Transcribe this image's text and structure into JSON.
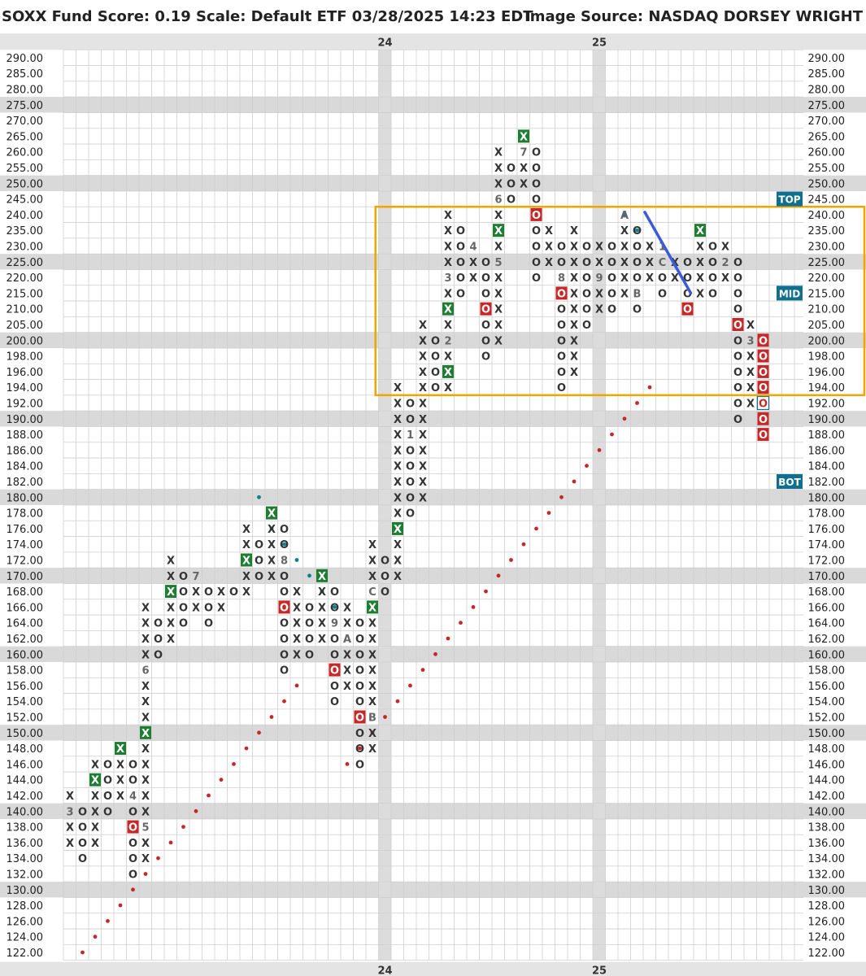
{
  "header": {
    "title_left": "SOXX Fund Score: 0.19 Scale: Default ETF 03/28/2025 14:23 EDT",
    "title_right": "Image Source: NASDAQ DORSEY WRIGHT"
  },
  "colors": {
    "x_box": "#1e7d32",
    "o_box": "#c62828",
    "red_dot": "#c62828",
    "teal_dot": "#00838f",
    "trend_line": "#3b5bdb",
    "range_box": "#f0a500",
    "label_box": "#0e6f8e",
    "band": "#d9d9d9"
  },
  "chart_data": {
    "type": "point-and-figure",
    "symbol": "SOXX",
    "fund_score": "0.19",
    "scale": "Default ETF",
    "date": "03/28/2025 14:23 EDT",
    "price_levels": [
      "122.00",
      "124.00",
      "126.00",
      "128.00",
      "130.00",
      "132.00",
      "134.00",
      "136.00",
      "138.00",
      "140.00",
      "142.00",
      "144.00",
      "146.00",
      "148.00",
      "150.00",
      "152.00",
      "154.00",
      "156.00",
      "158.00",
      "160.00",
      "162.00",
      "164.00",
      "166.00",
      "168.00",
      "170.00",
      "172.00",
      "174.00",
      "176.00",
      "178.00",
      "180.00",
      "182.00",
      "184.00",
      "186.00",
      "188.00",
      "190.00",
      "192.00",
      "194.00",
      "196.00",
      "198.00",
      "200.00",
      "205.00",
      "210.00",
      "215.00",
      "220.00",
      "225.00",
      "230.00",
      "235.00",
      "240.00",
      "245.00",
      "250.00",
      "255.00",
      "260.00",
      "265.00",
      "270.00",
      "275.00",
      "280.00",
      "285.00",
      "290.00"
    ],
    "shaded_levels": [
      "130.00",
      "140.00",
      "150.00",
      "160.00",
      "170.00",
      "180.00",
      "190.00",
      "200.00",
      "225.00",
      "250.00",
      "275.00"
    ],
    "year_markers": [
      {
        "label": "24",
        "col": 25
      },
      {
        "label": "25",
        "col": 42
      }
    ],
    "columns": [
      {
        "t": "X",
        "from": 136,
        "to": 142,
        "marks": {
          "140.00": "3"
        }
      },
      {
        "t": "O",
        "from": 134,
        "to": 140
      },
      {
        "t": "X",
        "from": 136,
        "to": 146,
        "marks": {
          "144.00": "X*"
        }
      },
      {
        "t": "O",
        "from": 140,
        "to": 146
      },
      {
        "t": "X",
        "from": 142,
        "to": 148,
        "marks": {
          "148.00": "X*"
        }
      },
      {
        "t": "O",
        "from": 132,
        "to": 146,
        "marks": {
          "142.00": "4",
          "138.00": "O*"
        }
      },
      {
        "t": "X",
        "from": 134,
        "to": 166,
        "marks": {
          "138.00": "5",
          "158.00": "6",
          "150.00": "X*"
        }
      },
      {
        "t": "O",
        "from": 160,
        "to": 164
      },
      {
        "t": "X",
        "from": 162,
        "to": 172,
        "marks": {
          "168.00": "X*"
        }
      },
      {
        "t": "O",
        "from": 164,
        "to": 170
      },
      {
        "t": "X",
        "from": 166,
        "to": 170,
        "marks": {
          "170.00": "7"
        }
      },
      {
        "t": "O",
        "from": 164,
        "to": 168
      },
      {
        "t": "X",
        "from": 166,
        "to": 168
      },
      {
        "t": "O",
        "from": 168,
        "to": 168
      },
      {
        "t": "X",
        "from": 168,
        "to": 176,
        "marks": {
          "172.00": "X*"
        }
      },
      {
        "t": "O",
        "from": 170,
        "to": 174
      },
      {
        "t": "X",
        "from": 170,
        "to": 178,
        "marks": {
          "178.00": "X*"
        }
      },
      {
        "t": "O",
        "from": 158,
        "to": 176,
        "marks": {
          "172.00": "8",
          "166.00": "O*"
        }
      },
      {
        "t": "X",
        "from": 160,
        "to": 168
      },
      {
        "t": "O",
        "from": 160,
        "to": 166
      },
      {
        "t": "X",
        "from": 162,
        "to": 170,
        "marks": {
          "170.00": "X*"
        }
      },
      {
        "t": "O",
        "from": 154,
        "to": 168,
        "marks": {
          "164.00": "9",
          "158.00": "O*"
        }
      },
      {
        "t": "X",
        "from": 156,
        "to": 166,
        "marks": {
          "162.00": "A"
        }
      },
      {
        "t": "O",
        "from": 146,
        "to": 164,
        "marks": {
          "152.00": "O*"
        }
      },
      {
        "t": "X",
        "from": 148,
        "to": 174,
        "marks": {
          "152.00": "B",
          "166.00": "X*",
          "168.00": "C"
        }
      },
      {
        "t": "O",
        "from": 168,
        "to": 172
      },
      {
        "t": "X",
        "from": 170,
        "to": 194,
        "marks": {
          "176.00": "X*"
        }
      },
      {
        "t": "O",
        "from": 178,
        "to": 192,
        "marks": {
          "188.00": "1"
        }
      },
      {
        "t": "X",
        "from": 180,
        "to": 205
      },
      {
        "t": "O",
        "from": 194,
        "to": 200
      },
      {
        "t": "X",
        "from": 194,
        "to": 240,
        "marks": {
          "196.00": "X*",
          "200.00": "2",
          "210.00": "X*",
          "220.00": "3"
        }
      },
      {
        "t": "O",
        "from": 215,
        "to": 235
      },
      {
        "t": "X",
        "from": 220,
        "to": 230,
        "marks": {
          "230.00": "4"
        }
      },
      {
        "t": "O",
        "from": 198,
        "to": 225,
        "marks": {
          "210.00": "O*"
        }
      },
      {
        "t": "X",
        "from": 200,
        "to": 260,
        "marks": {
          "225.00": "5",
          "235.00": "X*",
          "245.00": "6"
        }
      },
      {
        "t": "O",
        "from": 245,
        "to": 255
      },
      {
        "t": "X",
        "from": 250,
        "to": 265,
        "marks": {
          "260.00": "7",
          "265.00": "X*"
        }
      },
      {
        "t": "O",
        "from": 220,
        "to": 260,
        "marks": {
          "240.00": "O*"
        }
      },
      {
        "t": "X",
        "from": 225,
        "to": 235
      },
      {
        "t": "O",
        "from": 194,
        "to": 230,
        "marks": {
          "220.00": "8",
          "215.00": "O*"
        }
      },
      {
        "t": "X",
        "from": 196,
        "to": 235
      },
      {
        "t": "O",
        "from": 205,
        "to": 230
      },
      {
        "t": "X",
        "from": 210,
        "to": 230,
        "marks": {
          "220.00": "9"
        }
      },
      {
        "t": "O",
        "from": 210,
        "to": 230
      },
      {
        "t": "X",
        "from": 215,
        "to": 240,
        "marks": {
          "240.00": "A"
        }
      },
      {
        "t": "O",
        "from": 210,
        "to": 235,
        "marks": {
          "215.00": "B"
        }
      },
      {
        "t": "X",
        "from": 220,
        "to": 230
      },
      {
        "t": "O",
        "from": 215,
        "to": 230,
        "marks": {
          "230.00": "1",
          "225.00": "C"
        }
      },
      {
        "t": "X",
        "from": 220,
        "to": 225
      },
      {
        "t": "O",
        "from": 210,
        "to": 225,
        "marks": {
          "210.00": "O*"
        }
      },
      {
        "t": "X",
        "from": 215,
        "to": 235,
        "marks": {
          "235.00": "X*"
        }
      },
      {
        "t": "O",
        "from": 215,
        "to": 230
      },
      {
        "t": "X",
        "from": 220,
        "to": 230,
        "marks": {
          "225.00": "2"
        }
      },
      {
        "t": "O",
        "from": 190,
        "to": 225,
        "marks": {
          "205.00": "O*"
        }
      },
      {
        "t": "X",
        "from": 192,
        "to": 205,
        "marks": {
          "200.00": "3"
        }
      },
      {
        "t": "O",
        "from": 188,
        "to": 200,
        "marks": {
          "200.00": "O*",
          "198.00": "O*",
          "196.00": "O*",
          "194.00": "O*",
          "192.00": "O@",
          "190.00": "O*",
          "188.00": "O*"
        }
      }
    ],
    "red_trend_dots": [
      [
        1,
        122.0
      ],
      [
        2,
        124.0
      ],
      [
        3,
        126.0
      ],
      [
        4,
        128.0
      ],
      [
        5,
        130.0
      ],
      [
        6,
        132.0
      ],
      [
        7,
        134.0
      ],
      [
        8,
        136.0
      ],
      [
        9,
        138.0
      ],
      [
        10,
        140.0
      ],
      [
        11,
        142.0
      ],
      [
        12,
        144.0
      ],
      [
        13,
        146.0
      ],
      [
        14,
        148.0
      ],
      [
        15,
        150.0
      ],
      [
        16,
        152.0
      ],
      [
        17,
        154.0
      ],
      [
        18,
        156.0
      ],
      [
        22,
        146.0
      ],
      [
        23,
        148.0
      ],
      [
        24,
        150.0
      ],
      [
        25,
        152.0
      ],
      [
        26,
        154.0
      ],
      [
        27,
        156.0
      ],
      [
        28,
        158.0
      ],
      [
        29,
        160.0
      ],
      [
        30,
        162.0
      ],
      [
        31,
        164.0
      ],
      [
        32,
        166.0
      ],
      [
        33,
        168.0
      ],
      [
        34,
        170.0
      ],
      [
        35,
        172.0
      ],
      [
        36,
        174.0
      ],
      [
        37,
        176.0
      ],
      [
        38,
        178.0
      ],
      [
        39,
        180.0
      ],
      [
        40,
        182.0
      ],
      [
        41,
        184.0
      ],
      [
        42,
        186.0
      ],
      [
        43,
        188.0
      ],
      [
        44,
        190.0
      ],
      [
        45,
        192.0
      ],
      [
        46,
        194.0
      ]
    ],
    "teal_trend_dots": [
      [
        15,
        180.0
      ],
      [
        16,
        176.0
      ],
      [
        17,
        174.0
      ],
      [
        18,
        172.0
      ],
      [
        19,
        170.0
      ],
      [
        20,
        168.0
      ],
      [
        21,
        166.0
      ],
      [
        44,
        240.0
      ],
      [
        45,
        235.0
      ]
    ],
    "trend_line": {
      "from": [
        46,
        240.0
      ],
      "to": [
        49,
        215.0
      ]
    },
    "range": {
      "top": "TOP",
      "mid": "MID",
      "bot": "BOT",
      "top_price": 245.0,
      "mid_price": 215.0,
      "bot_price": 182.0,
      "upper": 240.0,
      "lower": 194.0
    }
  }
}
